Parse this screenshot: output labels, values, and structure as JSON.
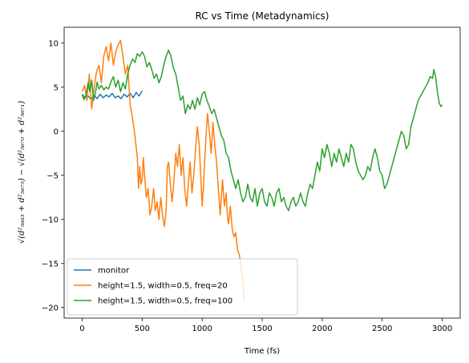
{
  "chart_data": {
    "type": "line",
    "title": "RC vs Time (Metadynamics)",
    "xlabel": "Time (fs)",
    "ylabel": "√(d²₅₆₆₃ + d²₅₆₇₅) − √(d²₅₆₇₀ + d²₅₆₇₁)",
    "xlim": [
      -150,
      3150
    ],
    "ylim": [
      -21.2,
      11.8
    ],
    "xticks": [
      0,
      500,
      1000,
      1500,
      2000,
      2500,
      3000
    ],
    "yticks": [
      -20,
      -15,
      -10,
      -5,
      0,
      5,
      10
    ],
    "grid": false,
    "legend_position": "lower-left",
    "series": [
      {
        "name": "monitor",
        "color": "#1f77b4",
        "points": [
          [
            0,
            4.2
          ],
          [
            25,
            3.8
          ],
          [
            50,
            4.0
          ],
          [
            75,
            3.6
          ],
          [
            100,
            4.1
          ],
          [
            125,
            3.7
          ],
          [
            150,
            4.2
          ],
          [
            175,
            3.8
          ],
          [
            200,
            4.1
          ],
          [
            225,
            3.9
          ],
          [
            250,
            4.3
          ],
          [
            275,
            3.8
          ],
          [
            300,
            4.0
          ],
          [
            325,
            3.7
          ],
          [
            350,
            4.2
          ],
          [
            375,
            3.9
          ],
          [
            400,
            4.3
          ],
          [
            425,
            3.8
          ],
          [
            450,
            4.4
          ],
          [
            475,
            4.0
          ],
          [
            500,
            4.6
          ]
        ]
      },
      {
        "name": "height=1.5, width=0.5, freq=20",
        "color": "#ff7f0e",
        "points": [
          [
            0,
            4.5
          ],
          [
            20,
            5.2
          ],
          [
            40,
            3.5
          ],
          [
            60,
            6.5
          ],
          [
            80,
            2.5
          ],
          [
            100,
            5.0
          ],
          [
            120,
            6.8
          ],
          [
            140,
            7.5
          ],
          [
            160,
            5.5
          ],
          [
            180,
            8.5
          ],
          [
            200,
            9.6
          ],
          [
            220,
            8.0
          ],
          [
            240,
            10.0
          ],
          [
            260,
            7.5
          ],
          [
            280,
            9.0
          ],
          [
            300,
            9.8
          ],
          [
            320,
            10.3
          ],
          [
            340,
            8.5
          ],
          [
            360,
            6.5
          ],
          [
            380,
            7.5
          ],
          [
            400,
            3.0
          ],
          [
            420,
            1.5
          ],
          [
            440,
            -0.5
          ],
          [
            460,
            -3.0
          ],
          [
            470,
            -6.5
          ],
          [
            480,
            -4.0
          ],
          [
            490,
            -6.0
          ],
          [
            500,
            -5.5
          ],
          [
            510,
            -3.0
          ],
          [
            520,
            -5.0
          ],
          [
            535,
            -7.5
          ],
          [
            550,
            -6.5
          ],
          [
            565,
            -9.5
          ],
          [
            580,
            -8.5
          ],
          [
            595,
            -6.5
          ],
          [
            610,
            -9.0
          ],
          [
            625,
            -8.0
          ],
          [
            640,
            -10.0
          ],
          [
            655,
            -7.5
          ],
          [
            670,
            -9.5
          ],
          [
            685,
            -10.8
          ],
          [
            700,
            -9.0
          ],
          [
            710,
            -4.0
          ],
          [
            720,
            -3.5
          ],
          [
            735,
            -6.0
          ],
          [
            750,
            -8.0
          ],
          [
            765,
            -5.5
          ],
          [
            780,
            -2.5
          ],
          [
            795,
            -4.0
          ],
          [
            810,
            -1.5
          ],
          [
            825,
            -5.0
          ],
          [
            840,
            -3.0
          ],
          [
            855,
            -6.5
          ],
          [
            870,
            -8.5
          ],
          [
            885,
            -6.0
          ],
          [
            900,
            -3.5
          ],
          [
            915,
            -7.0
          ],
          [
            930,
            -5.0
          ],
          [
            945,
            -2.0
          ],
          [
            960,
            0.5
          ],
          [
            975,
            -1.5
          ],
          [
            990,
            -5.5
          ],
          [
            1000,
            -8.5
          ],
          [
            1010,
            -6.5
          ],
          [
            1020,
            -3.5
          ],
          [
            1030,
            -1.0
          ],
          [
            1045,
            2.0
          ],
          [
            1060,
            0.0
          ],
          [
            1075,
            -2.5
          ],
          [
            1090,
            1.0
          ],
          [
            1105,
            -1.5
          ],
          [
            1120,
            -3.5
          ],
          [
            1135,
            -6.5
          ],
          [
            1150,
            -9.5
          ],
          [
            1160,
            -7.5
          ],
          [
            1170,
            -5.5
          ],
          [
            1185,
            -8.5
          ],
          [
            1200,
            -7.0
          ],
          [
            1210,
            -9.5
          ],
          [
            1220,
            -10.5
          ],
          [
            1235,
            -8.5
          ],
          [
            1250,
            -11.0
          ],
          [
            1265,
            -12.0
          ],
          [
            1280,
            -11.5
          ],
          [
            1295,
            -13.5
          ],
          [
            1310,
            -14.0
          ],
          [
            1325,
            -15.5
          ],
          [
            1340,
            -17.0
          ],
          [
            1350,
            -19.2
          ]
        ]
      },
      {
        "name": "height=1.5, width=0.5, freq=100",
        "color": "#2ca02c",
        "points": [
          [
            0,
            4.2
          ],
          [
            15,
            3.6
          ],
          [
            30,
            4.0
          ],
          [
            50,
            5.5
          ],
          [
            65,
            4.5
          ],
          [
            80,
            5.8
          ],
          [
            95,
            3.5
          ],
          [
            110,
            4.3
          ],
          [
            125,
            5.6
          ],
          [
            140,
            4.8
          ],
          [
            160,
            5.2
          ],
          [
            180,
            4.7
          ],
          [
            200,
            5.0
          ],
          [
            220,
            4.8
          ],
          [
            240,
            5.6
          ],
          [
            260,
            6.2
          ],
          [
            280,
            5.0
          ],
          [
            300,
            5.8
          ],
          [
            320,
            4.5
          ],
          [
            340,
            5.5
          ],
          [
            360,
            4.8
          ],
          [
            380,
            6.5
          ],
          [
            400,
            7.5
          ],
          [
            420,
            8.2
          ],
          [
            440,
            7.8
          ],
          [
            460,
            8.8
          ],
          [
            480,
            8.5
          ],
          [
            500,
            9.0
          ],
          [
            520,
            8.5
          ],
          [
            540,
            7.3
          ],
          [
            560,
            7.8
          ],
          [
            580,
            7.0
          ],
          [
            600,
            6.0
          ],
          [
            620,
            6.5
          ],
          [
            640,
            5.5
          ],
          [
            660,
            6.2
          ],
          [
            680,
            7.5
          ],
          [
            700,
            8.5
          ],
          [
            720,
            9.2
          ],
          [
            740,
            8.5
          ],
          [
            760,
            7.2
          ],
          [
            780,
            6.5
          ],
          [
            800,
            5.0
          ],
          [
            820,
            3.5
          ],
          [
            840,
            4.0
          ],
          [
            860,
            2.0
          ],
          [
            880,
            3.0
          ],
          [
            900,
            2.5
          ],
          [
            920,
            3.5
          ],
          [
            940,
            2.5
          ],
          [
            960,
            3.8
          ],
          [
            980,
            3.0
          ],
          [
            1000,
            4.2
          ],
          [
            1020,
            4.5
          ],
          [
            1040,
            3.5
          ],
          [
            1060,
            2.8
          ],
          [
            1080,
            2.0
          ],
          [
            1100,
            2.5
          ],
          [
            1120,
            1.5
          ],
          [
            1140,
            0.5
          ],
          [
            1160,
            -0.5
          ],
          [
            1180,
            -1.0
          ],
          [
            1200,
            -2.5
          ],
          [
            1220,
            -3.0
          ],
          [
            1240,
            -4.5
          ],
          [
            1260,
            -5.5
          ],
          [
            1280,
            -6.5
          ],
          [
            1300,
            -5.5
          ],
          [
            1320,
            -7.0
          ],
          [
            1340,
            -8.0
          ],
          [
            1360,
            -7.5
          ],
          [
            1380,
            -6.0
          ],
          [
            1400,
            -7.5
          ],
          [
            1420,
            -8.0
          ],
          [
            1440,
            -6.5
          ],
          [
            1460,
            -8.5
          ],
          [
            1480,
            -7.0
          ],
          [
            1500,
            -6.5
          ],
          [
            1520,
            -8.0
          ],
          [
            1540,
            -8.5
          ],
          [
            1560,
            -7.0
          ],
          [
            1580,
            -7.5
          ],
          [
            1600,
            -8.5
          ],
          [
            1620,
            -7.0
          ],
          [
            1640,
            -6.5
          ],
          [
            1660,
            -8.0
          ],
          [
            1680,
            -7.5
          ],
          [
            1700,
            -8.5
          ],
          [
            1720,
            -9.0
          ],
          [
            1740,
            -8.0
          ],
          [
            1760,
            -7.5
          ],
          [
            1780,
            -8.5
          ],
          [
            1800,
            -8.0
          ],
          [
            1820,
            -7.0
          ],
          [
            1840,
            -8.0
          ],
          [
            1860,
            -8.5
          ],
          [
            1880,
            -7.0
          ],
          [
            1900,
            -6.0
          ],
          [
            1920,
            -6.5
          ],
          [
            1940,
            -5.0
          ],
          [
            1960,
            -3.5
          ],
          [
            1980,
            -4.5
          ],
          [
            2000,
            -2.0
          ],
          [
            2020,
            -3.0
          ],
          [
            2040,
            -1.5
          ],
          [
            2060,
            -2.5
          ],
          [
            2080,
            -4.0
          ],
          [
            2100,
            -2.5
          ],
          [
            2120,
            -3.5
          ],
          [
            2140,
            -2.0
          ],
          [
            2160,
            -3.0
          ],
          [
            2180,
            -4.0
          ],
          [
            2200,
            -2.5
          ],
          [
            2220,
            -3.5
          ],
          [
            2240,
            -1.5
          ],
          [
            2260,
            -2.0
          ],
          [
            2280,
            -3.5
          ],
          [
            2300,
            -4.5
          ],
          [
            2320,
            -5.0
          ],
          [
            2340,
            -5.5
          ],
          [
            2360,
            -5.0
          ],
          [
            2380,
            -4.0
          ],
          [
            2400,
            -4.5
          ],
          [
            2420,
            -3.0
          ],
          [
            2440,
            -2.0
          ],
          [
            2460,
            -3.0
          ],
          [
            2480,
            -4.5
          ],
          [
            2500,
            -5.0
          ],
          [
            2520,
            -6.5
          ],
          [
            2540,
            -6.0
          ],
          [
            2560,
            -5.0
          ],
          [
            2580,
            -4.0
          ],
          [
            2600,
            -3.0
          ],
          [
            2620,
            -2.0
          ],
          [
            2640,
            -1.0
          ],
          [
            2660,
            0.0
          ],
          [
            2680,
            -0.5
          ],
          [
            2700,
            -2.0
          ],
          [
            2720,
            -1.5
          ],
          [
            2740,
            0.5
          ],
          [
            2760,
            1.5
          ],
          [
            2780,
            2.5
          ],
          [
            2800,
            3.5
          ],
          [
            2820,
            4.0
          ],
          [
            2840,
            4.5
          ],
          [
            2860,
            5.0
          ],
          [
            2880,
            5.5
          ],
          [
            2900,
            6.2
          ],
          [
            2920,
            6.0
          ],
          [
            2930,
            7.0
          ],
          [
            2945,
            6.2
          ],
          [
            2960,
            4.5
          ],
          [
            2975,
            3.2
          ],
          [
            2990,
            2.8
          ],
          [
            3000,
            3.0
          ]
        ]
      }
    ]
  }
}
